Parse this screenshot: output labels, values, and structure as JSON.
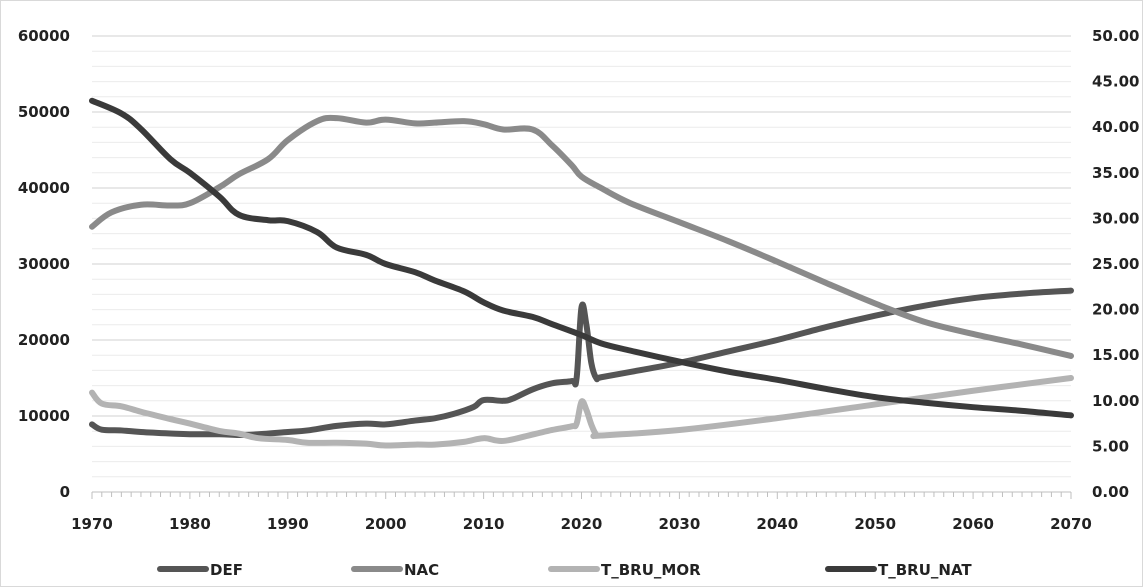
{
  "chart_data": {
    "type": "line",
    "title": "",
    "xlabel": "",
    "ylabel": "",
    "x_ticks": [
      "1970",
      "1980",
      "1990",
      "2000",
      "2010",
      "2020",
      "2030",
      "2040",
      "2050",
      "2060",
      "2070"
    ],
    "y_ticks": [
      "0",
      "10000",
      "20000",
      "30000",
      "40000",
      "50000",
      "60000"
    ],
    "y2_ticks": [
      "0.00",
      "5.00",
      "10.00",
      "15.00",
      "20.00",
      "25.00",
      "30.00",
      "35.00",
      "40.00",
      "45.00",
      "50.00"
    ],
    "xlim": [
      1970,
      2070
    ],
    "ylim": [
      0,
      60000
    ],
    "y2lim": [
      0,
      50
    ],
    "grid": true,
    "legend_position": "bottom",
    "series": [
      {
        "name": "DEF",
        "axis": "left",
        "color": "#555555",
        "x": [
          1970,
          1971,
          1973,
          1975,
          1978,
          1980,
          1983,
          1985,
          1987,
          1990,
          1992,
          1995,
          1998,
          2000,
          2003,
          2005,
          2007,
          2009,
          2010,
          2012,
          2013,
          2015,
          2017,
          2019,
          2019.5,
          2020,
          2020.5,
          2021,
          2021.5,
          2022,
          2025,
          2030,
          2035,
          2040,
          2045,
          2050,
          2055,
          2060,
          2065,
          2070
        ],
        "values": [
          8900,
          8200,
          8100,
          7900,
          7700,
          7600,
          7600,
          7500,
          7600,
          7900,
          8100,
          8700,
          9000,
          8900,
          9400,
          9700,
          10300,
          11200,
          12100,
          12000,
          12300,
          13500,
          14300,
          14600,
          15000,
          24300,
          22000,
          17000,
          15000,
          15100,
          15800,
          17000,
          18500,
          20000,
          21700,
          23200,
          24500,
          25500,
          26100,
          26500
        ]
      },
      {
        "name": "NAC",
        "axis": "left",
        "color": "#8a8a8a",
        "x": [
          1970,
          1972,
          1975,
          1978,
          1980,
          1983,
          1985,
          1988,
          1990,
          1993,
          1995,
          1998,
          2000,
          2003,
          2005,
          2008,
          2010,
          2012,
          2015,
          2017,
          2019,
          2020,
          2022,
          2025,
          2030,
          2035,
          2040,
          2045,
          2050,
          2055,
          2060,
          2065,
          2070
        ],
        "values": [
          34900,
          36800,
          37800,
          37700,
          38000,
          40100,
          41800,
          43800,
          46300,
          48800,
          49200,
          48600,
          49000,
          48500,
          48600,
          48800,
          48400,
          47700,
          47700,
          45600,
          43000,
          41500,
          40000,
          38000,
          35500,
          33000,
          30300,
          27500,
          24800,
          22400,
          20800,
          19400,
          17900
        ]
      },
      {
        "name": "T_BRU_MOR",
        "axis": "right",
        "color": "#b3b3b3",
        "x": [
          1970,
          1971,
          1973,
          1975,
          1978,
          1980,
          1983,
          1985,
          1987,
          1990,
          1992,
          1995,
          1998,
          2000,
          2003,
          2005,
          2008,
          2010,
          2012,
          2015,
          2017,
          2019,
          2019.5,
          2020,
          2020.5,
          2021,
          2021.5,
          2022,
          2030,
          2040,
          2050,
          2060,
          2070
        ],
        "values": [
          10.9,
          9.7,
          9.4,
          8.8,
          8.0,
          7.5,
          6.7,
          6.4,
          5.9,
          5.7,
          5.4,
          5.4,
          5.3,
          5.1,
          5.2,
          5.2,
          5.5,
          5.9,
          5.6,
          6.3,
          6.8,
          7.2,
          7.5,
          9.9,
          9.0,
          7.4,
          6.3,
          6.2,
          6.8,
          8.1,
          9.6,
          11.1,
          12.5
        ]
      },
      {
        "name": "T_BRU_NAT",
        "axis": "right",
        "color": "#3a3a3a",
        "x": [
          1970,
          1973,
          1975,
          1978,
          1980,
          1983,
          1985,
          1988,
          1990,
          1993,
          1995,
          1998,
          2000,
          2003,
          2005,
          2008,
          2010,
          2012,
          2015,
          2017,
          2020,
          2022,
          2025,
          2030,
          2035,
          2040,
          2045,
          2050,
          2055,
          2060,
          2065,
          2070
        ],
        "values": [
          42.9,
          41.5,
          39.8,
          36.5,
          35.0,
          32.4,
          30.4,
          29.8,
          29.7,
          28.5,
          26.8,
          26.0,
          25.0,
          24.1,
          23.2,
          22.0,
          20.8,
          19.9,
          19.2,
          18.4,
          17.2,
          16.3,
          15.5,
          14.3,
          13.2,
          12.3,
          11.3,
          10.4,
          9.8,
          9.3,
          8.9,
          8.4
        ]
      }
    ]
  }
}
